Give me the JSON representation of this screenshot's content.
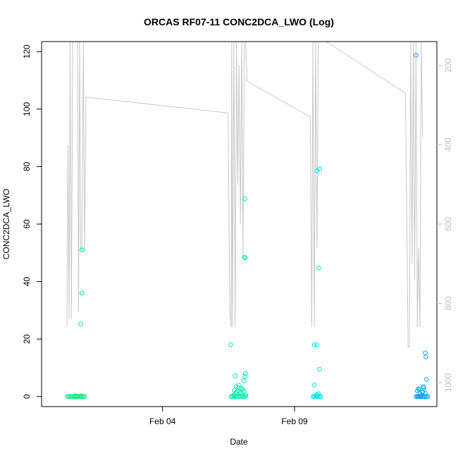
{
  "chart_data": {
    "type": "scatter",
    "title": "ORCAS RF07-11 CONC2DCA_LWO (Log)",
    "xlabel": "Date",
    "ylabel": "CONC2DCA_LWO",
    "x_ticks": [
      "Feb 04",
      "Feb 09"
    ],
    "y_ticks": [
      "0",
      "20",
      "40",
      "60",
      "80",
      "100",
      "120"
    ],
    "y2_ticks": [
      "200",
      "400",
      "600",
      "800",
      "1000"
    ],
    "x_range_days": [
      -0.58,
      14.39
    ],
    "ylim": [
      -3.5,
      123.5
    ],
    "y2_range": [
      1060,
      140
    ],
    "y2_reversed": true,
    "legend": "none",
    "grid": false,
    "colors": {
      "line": "#c8c8c8",
      "right_axis": "#c0c0c0"
    },
    "series": [
      {
        "flight": "RF07",
        "color": "#00ee76",
        "points": [
          [
            0.4,
            0.0
          ],
          [
            0.45,
            0.0
          ],
          [
            0.5,
            0.0
          ],
          [
            0.55,
            0.0
          ],
          [
            0.6,
            0.0
          ],
          [
            0.65,
            0.0
          ],
          [
            0.7,
            0.0
          ],
          [
            0.75,
            0.0
          ],
          [
            0.8,
            0.0
          ],
          [
            0.85,
            0.0
          ],
          [
            0.9,
            0.0
          ],
          [
            0.95,
            0.0
          ],
          [
            1.0,
            0.0
          ],
          [
            1.05,
            0.0
          ],
          [
            0.7,
            0.3
          ],
          [
            0.9,
            0.2
          ],
          [
            0.95,
            51.0
          ],
          [
            0.95,
            36.0
          ],
          [
            0.9,
            25.3
          ]
        ]
      },
      {
        "flight": "RF08",
        "color": "#00eeaa",
        "points": [
          [
            6.6,
            0.0
          ],
          [
            6.65,
            0.0
          ],
          [
            6.7,
            0.0
          ],
          [
            6.75,
            0.0
          ],
          [
            6.8,
            0.0
          ],
          [
            6.85,
            0.0
          ],
          [
            6.9,
            0.0
          ],
          [
            6.95,
            0.0
          ],
          [
            7.0,
            0.0
          ],
          [
            7.05,
            0.0
          ],
          [
            7.1,
            0.0
          ],
          [
            7.15,
            0.0
          ],
          [
            6.7,
            0.5
          ],
          [
            6.75,
            1.0
          ],
          [
            6.8,
            1.5
          ],
          [
            6.85,
            2.0
          ],
          [
            6.9,
            3.0
          ],
          [
            6.95,
            1.2
          ],
          [
            7.0,
            0.8
          ],
          [
            7.05,
            2.5
          ],
          [
            7.1,
            1.8
          ],
          [
            7.15,
            0.6
          ],
          [
            6.72,
            2.2
          ],
          [
            6.78,
            3.5
          ],
          [
            6.88,
            4.0
          ],
          [
            6.98,
            2.8
          ],
          [
            7.08,
            5.5
          ],
          [
            7.12,
            7.0
          ],
          [
            7.14,
            8.0
          ],
          [
            6.75,
            7.2
          ],
          [
            6.58,
            18.0
          ],
          [
            7.12,
            68.8
          ],
          [
            7.1,
            48.5
          ],
          [
            7.12,
            48.2
          ]
        ]
      },
      {
        "flight": "RF09",
        "color": "#00e5ee",
        "points": [
          [
            9.7,
            0.0
          ],
          [
            9.75,
            0.0
          ],
          [
            9.8,
            0.0
          ],
          [
            9.85,
            0.0
          ],
          [
            9.9,
            0.0
          ],
          [
            9.95,
            0.0
          ],
          [
            10.0,
            0.0
          ],
          [
            9.8,
            0.3
          ],
          [
            9.9,
            1.0
          ],
          [
            9.85,
            0.6
          ],
          [
            9.75,
            4.0
          ],
          [
            9.75,
            18.0
          ],
          [
            9.85,
            18.0
          ],
          [
            9.95,
            9.5
          ],
          [
            9.85,
            78.5
          ],
          [
            9.95,
            79.2
          ],
          [
            9.92,
            44.7
          ]
        ]
      },
      {
        "flight": "RF10",
        "color": "#00a8ee",
        "points": [
          [
            13.6,
            0.0
          ],
          [
            13.65,
            0.0
          ],
          [
            13.7,
            0.0
          ],
          [
            13.75,
            0.0
          ],
          [
            13.8,
            0.0
          ],
          [
            13.85,
            0.0
          ],
          [
            13.9,
            0.0
          ],
          [
            13.95,
            0.0
          ],
          [
            14.0,
            0.0
          ],
          [
            14.05,
            0.0
          ],
          [
            13.65,
            2.0
          ],
          [
            13.7,
            2.7
          ],
          [
            13.75,
            1.0
          ],
          [
            13.8,
            0.5
          ],
          [
            13.85,
            1.5
          ],
          [
            13.9,
            3.0
          ],
          [
            13.95,
            1.2
          ],
          [
            13.72,
            2.4
          ],
          [
            13.88,
            3.4
          ],
          [
            14.0,
            6.0
          ],
          [
            13.95,
            15.2
          ],
          [
            13.97,
            13.8
          ]
        ]
      },
      {
        "flight": "RF11",
        "color": "#1e90ff",
        "points": [
          [
            13.6,
            118.7
          ],
          [
            13.68,
            0.0
          ],
          [
            13.78,
            0.0
          ]
        ]
      }
    ],
    "altitude_line": [
      [
        0.38,
        860
      ],
      [
        0.42,
        400
      ],
      [
        0.46,
        840
      ],
      [
        0.5,
        140
      ],
      [
        0.55,
        840
      ],
      [
        0.6,
        140
      ],
      [
        0.7,
        140
      ],
      [
        0.78,
        140
      ],
      [
        0.82,
        820
      ],
      [
        0.86,
        140
      ],
      [
        0.9,
        660
      ],
      [
        0.95,
        670
      ],
      [
        1.0,
        140
      ],
      [
        1.05,
        670
      ],
      [
        1.1,
        280
      ],
      [
        6.48,
        320
      ],
      [
        6.55,
        820
      ],
      [
        6.6,
        860
      ],
      [
        6.62,
        140
      ],
      [
        6.65,
        860
      ],
      [
        6.7,
        140
      ],
      [
        6.75,
        860
      ],
      [
        6.8,
        140
      ],
      [
        6.85,
        500
      ],
      [
        6.9,
        200
      ],
      [
        6.95,
        600
      ],
      [
        7.0,
        140
      ],
      [
        7.05,
        680
      ],
      [
        7.1,
        140
      ],
      [
        7.15,
        140
      ],
      [
        7.2,
        240
      ],
      [
        9.6,
        330
      ],
      [
        9.65,
        860
      ],
      [
        9.7,
        140
      ],
      [
        9.75,
        860
      ],
      [
        9.8,
        140
      ],
      [
        9.85,
        660
      ],
      [
        9.9,
        140
      ],
      [
        9.95,
        140
      ],
      [
        10.2,
        140
      ],
      [
        13.2,
        270
      ],
      [
        13.3,
        910
      ],
      [
        13.35,
        910
      ],
      [
        13.4,
        140
      ],
      [
        13.45,
        700
      ],
      [
        13.5,
        140
      ],
      [
        13.55,
        740
      ],
      [
        13.6,
        140
      ],
      [
        13.65,
        860
      ],
      [
        13.7,
        660
      ],
      [
        13.75,
        860
      ],
      [
        13.8,
        140
      ],
      [
        13.85,
        380
      ]
    ]
  }
}
